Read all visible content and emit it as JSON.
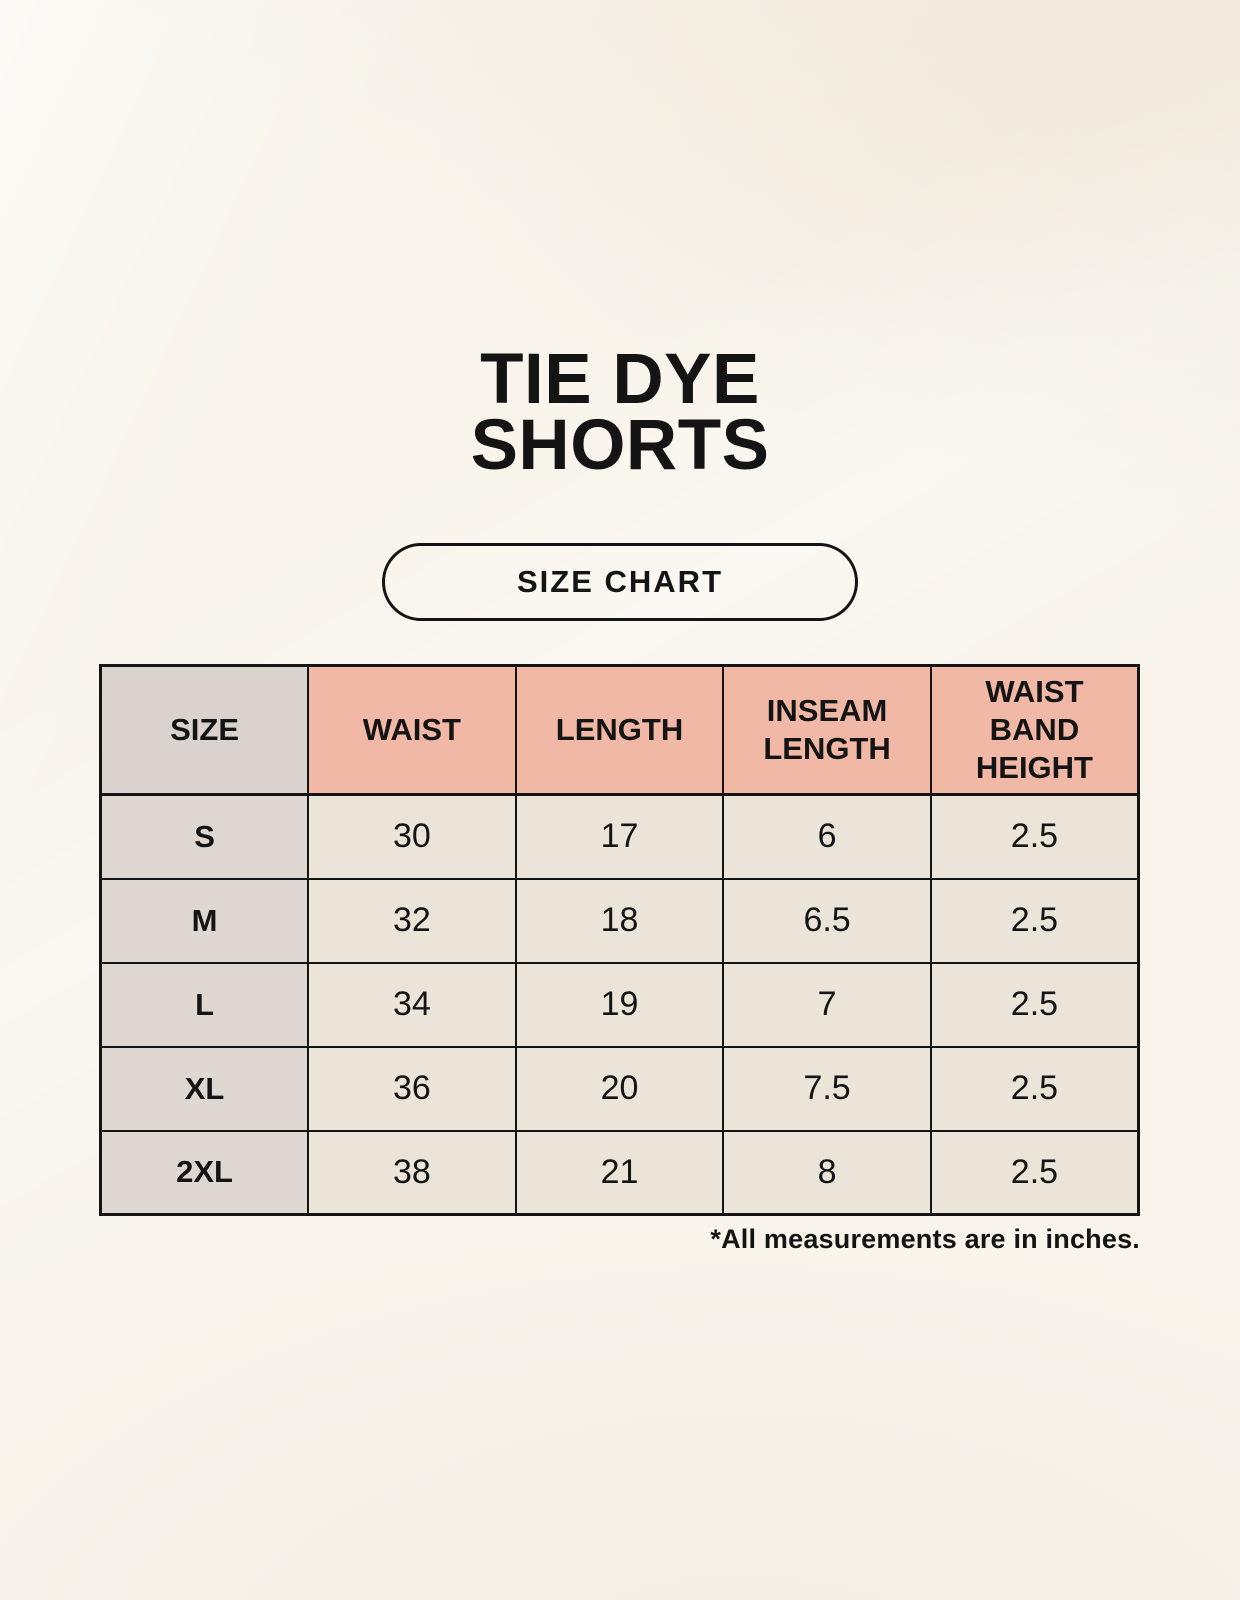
{
  "header": {
    "title_line1": "TIE DYE",
    "title_line2": "SHORTS",
    "badge_label": "SIZE CHART"
  },
  "footnote": "*All measurements are in inches.",
  "colors": {
    "background": "#f8f4eb",
    "table_border": "#141414",
    "header_pink": "#f2b8a6",
    "header_gray": "#d9d2ce",
    "size_column_gray": "#ded7d2",
    "cell_cream": "#ebe4d8",
    "text": "#141414"
  },
  "chart_data": {
    "type": "table",
    "title": "TIE DYE SHORTS",
    "subtitle": "SIZE CHART",
    "units": "inches",
    "columns": [
      "SIZE",
      "WAIST",
      "LENGTH",
      "INSEAM LENGTH",
      "WAIST BAND HEIGHT"
    ],
    "rows": [
      {
        "size": "S",
        "values": [
          "30",
          "17",
          "6",
          "2.5"
        ]
      },
      {
        "size": "M",
        "values": [
          "32",
          "18",
          "6.5",
          "2.5"
        ]
      },
      {
        "size": "L",
        "values": [
          "34",
          "19",
          "7",
          "2.5"
        ]
      },
      {
        "size": "XL",
        "values": [
          "36",
          "20",
          "7.5",
          "2.5"
        ]
      },
      {
        "size": "2XL",
        "values": [
          "38",
          "21",
          "8",
          "2.5"
        ]
      }
    ],
    "note": "*All measurements are in inches."
  }
}
